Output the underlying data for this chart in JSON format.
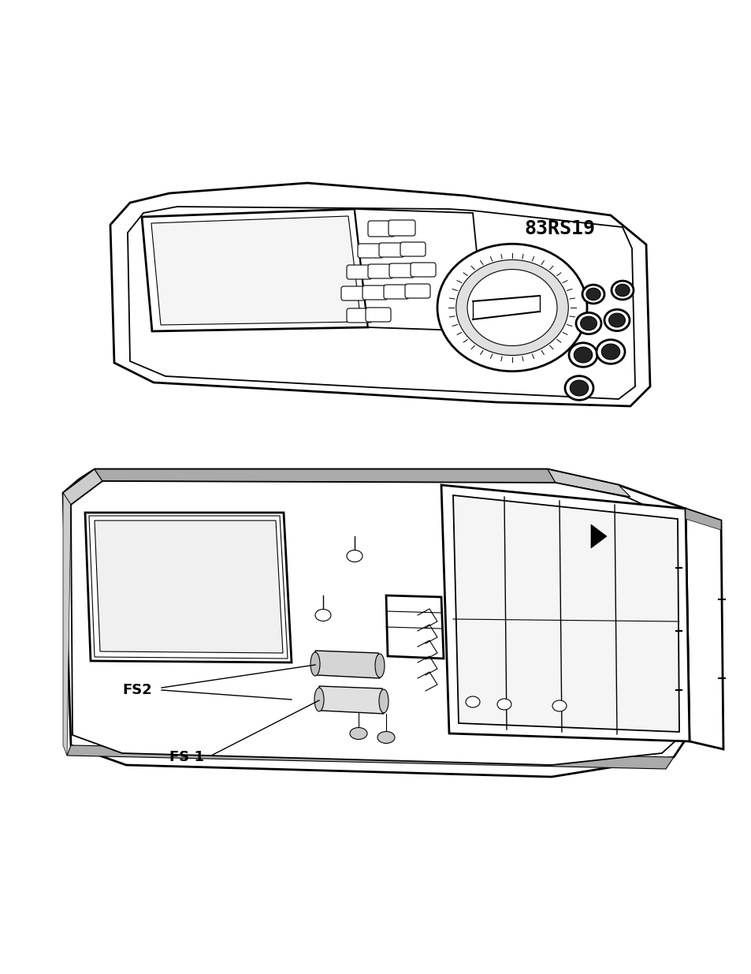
{
  "background_color": "#ffffff",
  "label_fs2": "FS2",
  "label_fs1": "FS 1",
  "label_model": "83RS19",
  "fig_width": 9.54,
  "fig_height": 12.35,
  "line_color": "#000000",
  "gray_color": "#aaaaaa",
  "light_gray": "#cccccc",
  "dark_gray": "#888888"
}
